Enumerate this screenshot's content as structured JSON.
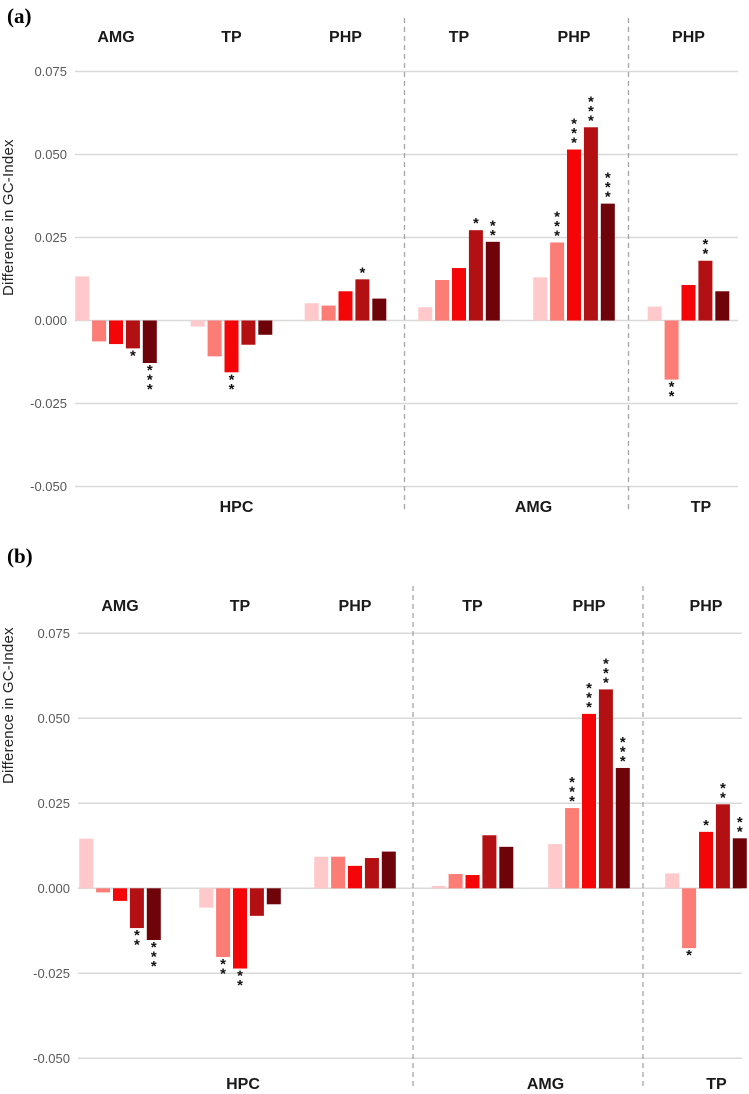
{
  "figure": {
    "bar_colors": [
      "#ffc9cb",
      "#fc7c76",
      "#f40507",
      "#b21013",
      "#6e0409"
    ],
    "grid_color": "#d9d9d9",
    "separator_color": "#a6a6a6",
    "tick_text_color": "#595959",
    "label_text_color": "#1a1a1a",
    "star_color": "#111111"
  },
  "chart_data": [
    {
      "type": "bar",
      "panel_label": "(a)",
      "title": "",
      "xlabel": "",
      "ylabel": "Difference in GC-Index",
      "ylim": [
        -0.05,
        0.075
      ],
      "yticks": [
        0.075,
        0.05,
        0.025,
        0,
        -0.025,
        -0.05
      ],
      "grid": true,
      "legend": false,
      "groups": [
        {
          "group": "HPC",
          "subgroups": [
            {
              "name": "AMG",
              "values": [
                0.0133,
                -0.0063,
                -0.0071,
                -0.0084,
                -0.0128
              ],
              "significance": [
                "",
                "",
                "",
                "*",
                "***"
              ]
            },
            {
              "name": "TP",
              "values": [
                -0.0018,
                -0.0108,
                -0.0156,
                -0.0073,
                -0.0043
              ],
              "significance": [
                "",
                "",
                "**",
                "",
                ""
              ]
            },
            {
              "name": "PHP",
              "values": [
                0.0052,
                0.0045,
                0.0088,
                0.0124,
                0.0066
              ],
              "significance": [
                "",
                "",
                "",
                "*",
                ""
              ]
            }
          ]
        },
        {
          "group": "AMG",
          "subgroups": [
            {
              "name": "TP",
              "values": [
                0.004,
                0.0122,
                0.0158,
                0.0272,
                0.0237
              ],
              "significance": [
                "",
                "",
                "",
                "*",
                "**"
              ]
            },
            {
              "name": "PHP",
              "values": [
                0.013,
                0.0235,
                0.0515,
                0.0582,
                0.0352
              ],
              "significance": [
                "",
                "***",
                "***",
                "***",
                "***"
              ]
            }
          ]
        },
        {
          "group": "TP",
          "subgroups": [
            {
              "name": "PHP",
              "values": [
                0.0042,
                -0.0178,
                0.0107,
                0.018,
                0.0088
              ],
              "significance": [
                "",
                "**",
                "",
                "**",
                ""
              ]
            }
          ]
        }
      ]
    },
    {
      "type": "bar",
      "panel_label": "(b)",
      "title": "",
      "xlabel": "",
      "ylabel": "Difference in GC-Index",
      "ylim": [
        -0.05,
        0.075
      ],
      "yticks": [
        0.075,
        0.05,
        0.025,
        0,
        -0.025,
        -0.05
      ],
      "grid": true,
      "legend": false,
      "groups": [
        {
          "group": "HPC",
          "subgroups": [
            {
              "name": "AMG",
              "values": [
                0.0146,
                -0.0012,
                -0.0037,
                -0.0117,
                -0.0152
              ],
              "significance": [
                "",
                "",
                "",
                "**",
                "***"
              ]
            },
            {
              "name": "TP",
              "values": [
                -0.0057,
                -0.0202,
                -0.0236,
                -0.0081,
                -0.0047
              ],
              "significance": [
                "",
                "**",
                "**",
                "",
                ""
              ]
            },
            {
              "name": "PHP",
              "values": [
                0.0093,
                0.0093,
                0.0066,
                0.0089,
                0.0108
              ],
              "significance": [
                "",
                "",
                "",
                "",
                ""
              ]
            }
          ]
        },
        {
          "group": "AMG",
          "subgroups": [
            {
              "name": "TP",
              "values": [
                0.0007,
                0.0042,
                0.0039,
                0.0156,
                0.0122
              ],
              "significance": [
                "",
                "",
                "",
                "",
                ""
              ]
            },
            {
              "name": "PHP",
              "values": [
                0.013,
                0.0236,
                0.0513,
                0.0585,
                0.0354
              ],
              "significance": [
                "",
                "***",
                "***",
                "***",
                "***"
              ]
            }
          ]
        },
        {
          "group": "TP",
          "subgroups": [
            {
              "name": "PHP",
              "values": [
                0.0044,
                -0.0176,
                0.0166,
                0.0247,
                0.0147
              ],
              "significance": [
                "",
                "*",
                "*",
                "**",
                "**"
              ]
            }
          ]
        }
      ]
    }
  ]
}
